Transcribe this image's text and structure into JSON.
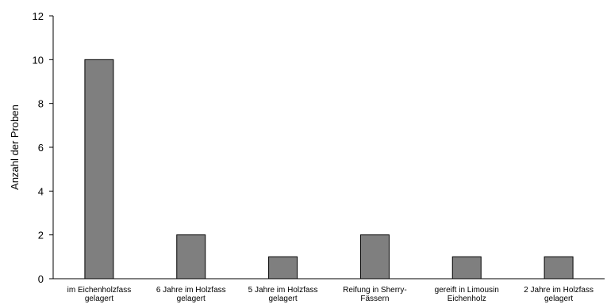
{
  "chart_data": {
    "type": "bar",
    "title": "",
    "xlabel": "",
    "ylabel": "Anzahl der Proben",
    "ylim": [
      0,
      12
    ],
    "yticks": [
      "0",
      "2",
      "4",
      "6",
      "8",
      "10",
      "12"
    ],
    "grid": false,
    "bar_color": "#7f7f7f",
    "bar_edge_color": "#000000",
    "categories": [
      [
        "im Eichenholzfass",
        "gelagert"
      ],
      [
        "6 Jahre im Holzfass",
        "gelagert"
      ],
      [
        "5 Jahre im Holzfass",
        "gelagert"
      ],
      [
        "Reifung in Sherry-",
        "Fässern"
      ],
      [
        "gereift in Limousin",
        "Eichenholz"
      ],
      [
        "2 Jahre im Holzfass",
        "gelagert"
      ]
    ],
    "values": [
      10,
      2,
      1,
      2,
      1,
      1
    ]
  }
}
